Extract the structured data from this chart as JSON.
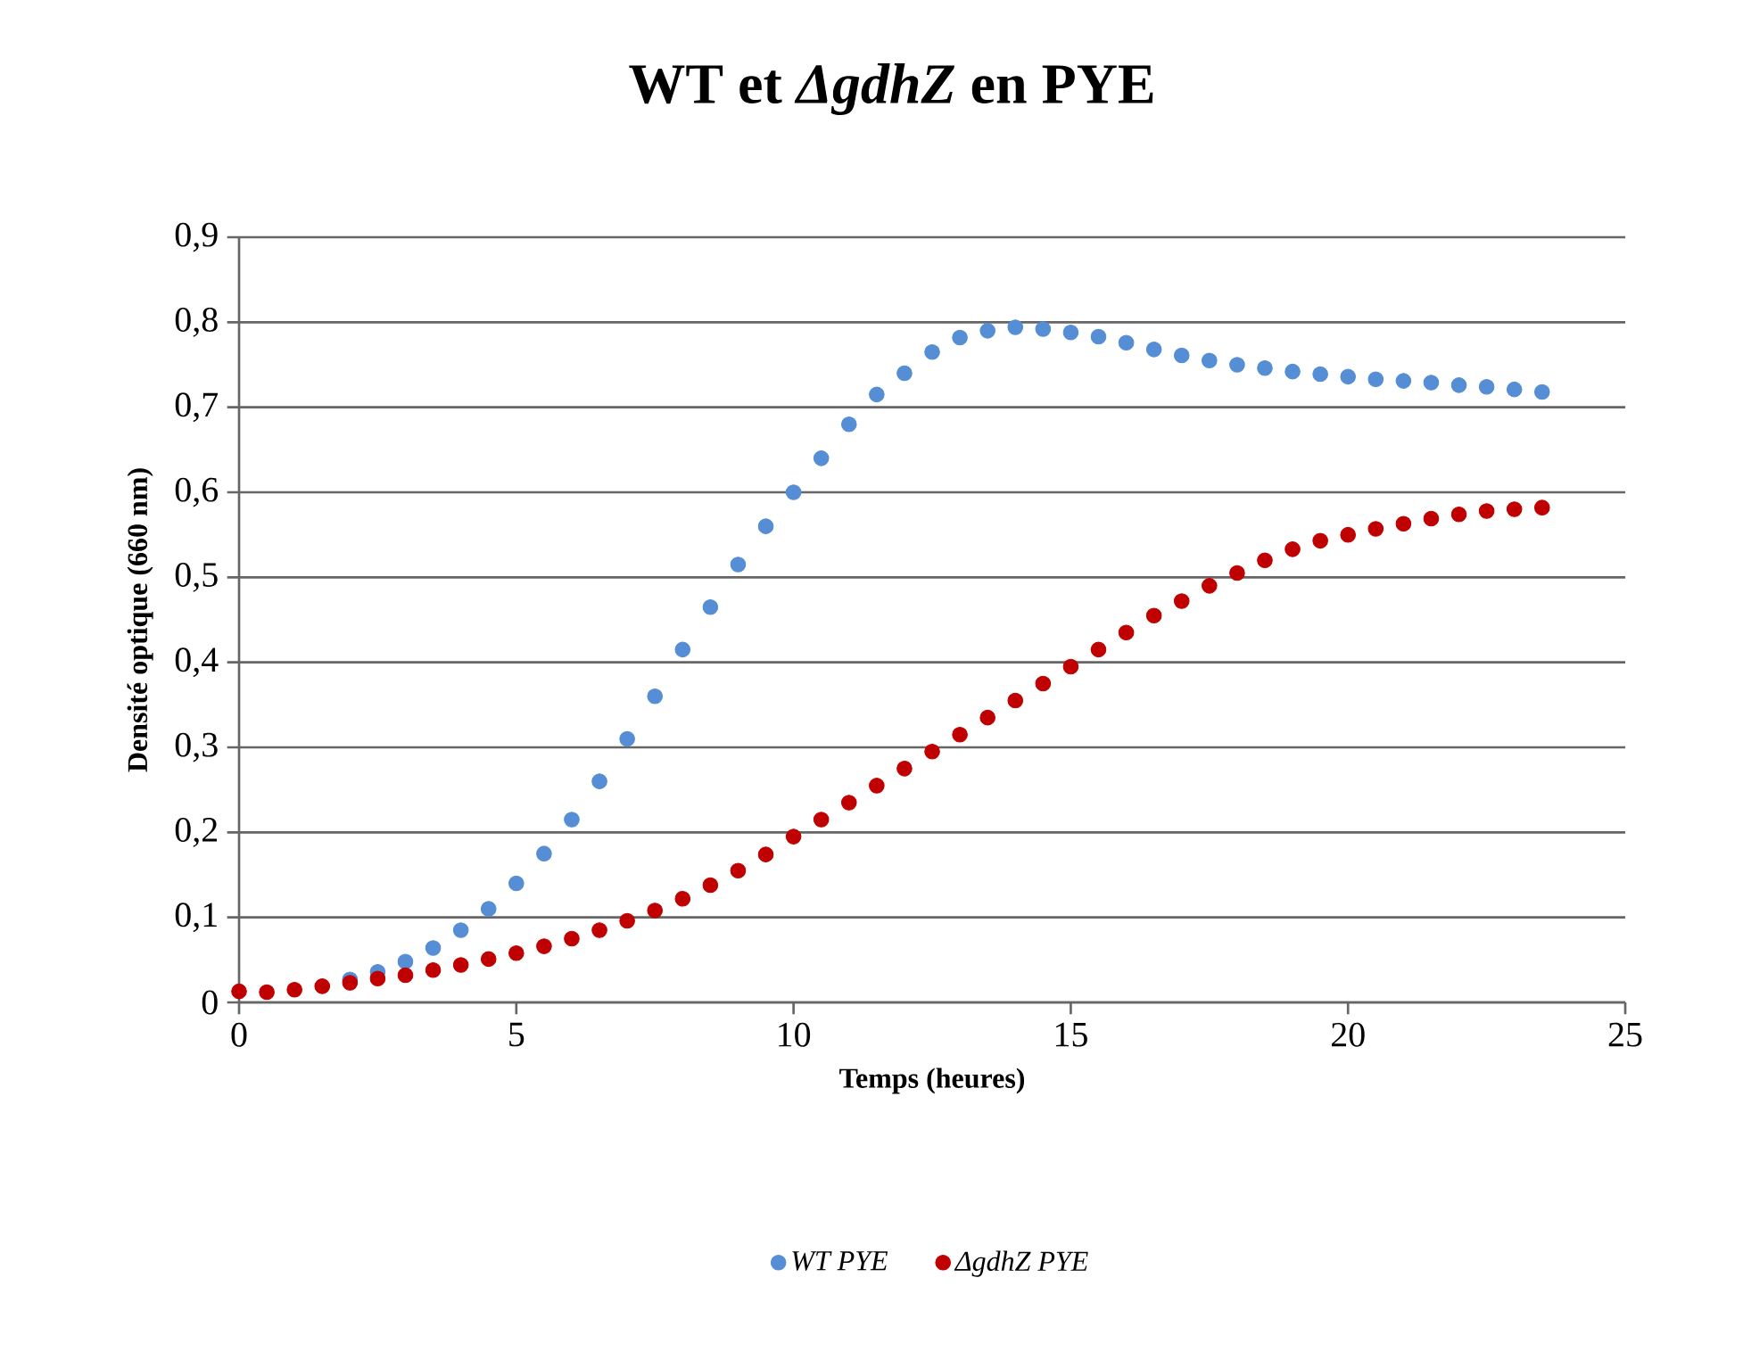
{
  "chart_data": {
    "type": "scatter",
    "title": "WT et *ΔgdhZ* en PYE",
    "xlabel": "Temps (heures)",
    "ylabel": "Densité optique (660 nm)",
    "xlim": [
      0,
      25
    ],
    "xticks": [
      0,
      5,
      10,
      15,
      20,
      25
    ],
    "ylim": [
      0,
      0.9
    ],
    "yticks": [
      {
        "value": 0,
        "label": "0"
      },
      {
        "value": 0.1,
        "label": "0,1"
      },
      {
        "value": 0.2,
        "label": "0,2"
      },
      {
        "value": 0.3,
        "label": "0,3"
      },
      {
        "value": 0.4,
        "label": "0,4"
      },
      {
        "value": 0.5,
        "label": "0,5"
      },
      {
        "value": 0.6,
        "label": "0,6"
      },
      {
        "value": 0.7,
        "label": "0,7"
      },
      {
        "value": 0.8,
        "label": "0,8"
      },
      {
        "value": 0.9,
        "label": "0,9"
      }
    ],
    "grid": "y",
    "legend": "bottom",
    "marker": "circle",
    "x": [
      0,
      0.5,
      1,
      1.5,
      2,
      2.5,
      3,
      3.5,
      4,
      4.5,
      5,
      5.5,
      6,
      6.5,
      7,
      7.5,
      8,
      8.5,
      9,
      9.5,
      10,
      10.5,
      11,
      11.5,
      12,
      12.5,
      13,
      13.5,
      14,
      14.5,
      15,
      15.5,
      16,
      16.5,
      17,
      17.5,
      18,
      18.5,
      19,
      19.5,
      20,
      20.5,
      21,
      21.5,
      22,
      22.5,
      23,
      23.5
    ],
    "series": [
      {
        "name": "WT PYE",
        "color": "#558ed5",
        "values": [
          null,
          null,
          null,
          null,
          0.027,
          0.036,
          0.048,
          0.064,
          0.085,
          0.11,
          0.14,
          0.175,
          0.215,
          0.26,
          0.31,
          0.36,
          0.415,
          0.465,
          0.515,
          0.56,
          0.6,
          0.64,
          0.68,
          0.715,
          0.74,
          0.765,
          0.782,
          0.79,
          0.794,
          0.792,
          0.788,
          0.783,
          0.776,
          0.768,
          0.761,
          0.755,
          0.75,
          0.746,
          0.742,
          0.739,
          0.736,
          0.733,
          0.731,
          0.729,
          0.726,
          0.724,
          0.721,
          0.718
        ]
      },
      {
        "name": "ΔgdhZ PYE",
        "color": "#c00000",
        "values": [
          0.013,
          0.012,
          0.015,
          0.019,
          0.023,
          0.028,
          0.032,
          0.038,
          0.044,
          0.051,
          0.058,
          0.066,
          0.075,
          0.085,
          0.096,
          0.108,
          0.122,
          0.138,
          0.155,
          0.174,
          0.195,
          0.215,
          0.235,
          0.255,
          0.275,
          0.295,
          0.315,
          0.335,
          0.355,
          0.375,
          0.395,
          0.415,
          0.435,
          0.455,
          0.472,
          0.49,
          0.505,
          0.52,
          0.533,
          0.543,
          0.55,
          0.557,
          0.563,
          0.569,
          0.574,
          0.578,
          0.58,
          0.582
        ]
      }
    ]
  }
}
